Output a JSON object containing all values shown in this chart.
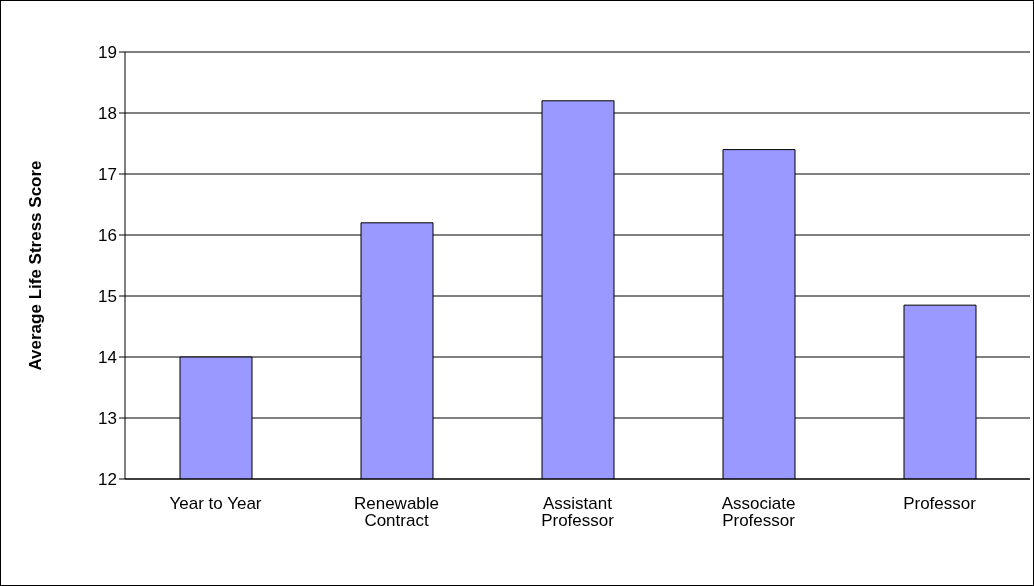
{
  "chart_data": {
    "type": "bar",
    "ylabel": "Average Life Stress Score",
    "categories": [
      "Year to Year",
      "Renewable Contract",
      "Assistant Professor",
      "Associate Professor",
      "Professor"
    ],
    "values": [
      14.0,
      16.2,
      18.2,
      17.4,
      14.85
    ],
    "color": "#9999ff",
    "ylim": [
      12,
      19
    ],
    "yticks": [
      12,
      13,
      14,
      15,
      16,
      17,
      18,
      19
    ],
    "grid": "y",
    "legend": false
  }
}
